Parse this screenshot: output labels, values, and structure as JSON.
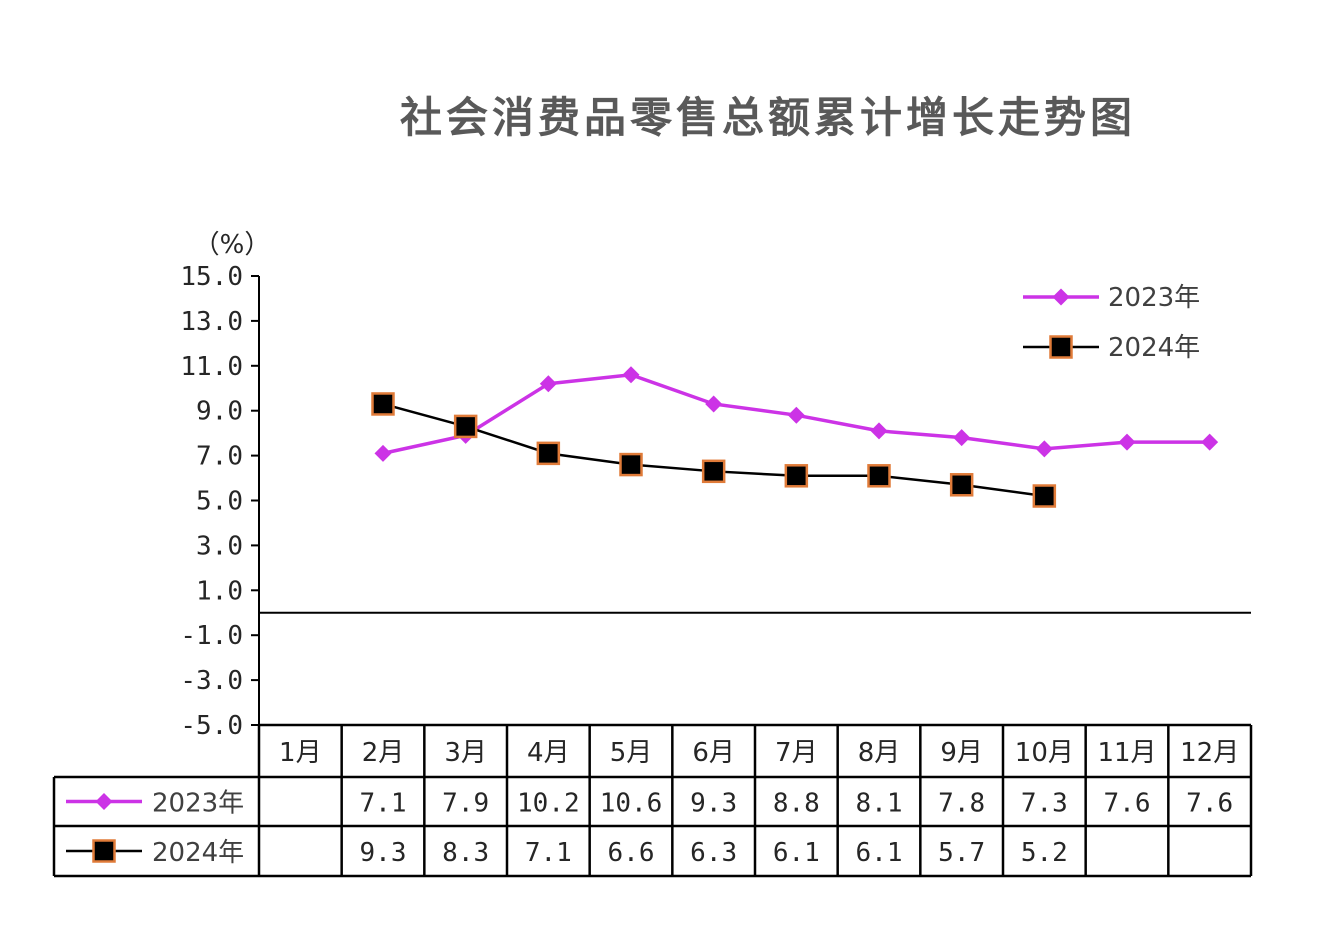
{
  "chart_data": {
    "type": "line",
    "title": "社会消费品零售总额累计增长走势图",
    "y_unit": "（%）",
    "ylim": [
      -5.0,
      15.0
    ],
    "y_ticks": [
      "15.0",
      "13.0",
      "11.0",
      "9.0",
      "7.0",
      "5.0",
      "3.0",
      "1.0",
      "-1.0",
      "-3.0",
      "-5.0"
    ],
    "categories": [
      "1月",
      "2月",
      "3月",
      "4月",
      "5月",
      "6月",
      "7月",
      "8月",
      "9月",
      "10月",
      "11月",
      "12月"
    ],
    "series": [
      {
        "name": "2023年",
        "color": "#cc33e6",
        "marker": "diamond",
        "values": [
          null,
          7.1,
          7.9,
          10.2,
          10.6,
          9.3,
          8.8,
          8.1,
          7.8,
          7.3,
          7.6,
          7.6
        ],
        "labels": [
          "",
          "7.1",
          "7.9",
          "10.2",
          "10.6",
          "9.3",
          "8.8",
          "8.1",
          "7.8",
          "7.3",
          "7.6",
          "7.6"
        ]
      },
      {
        "name": "2024年",
        "color": "#000000",
        "marker_border": "#e07b39",
        "marker": "square",
        "values": [
          null,
          9.3,
          8.3,
          7.1,
          6.6,
          6.3,
          6.1,
          6.1,
          5.7,
          5.2,
          null,
          null
        ],
        "labels": [
          "",
          "9.3",
          "8.3",
          "7.1",
          "6.6",
          "6.3",
          "6.1",
          "6.1",
          "5.7",
          "5.2",
          "",
          ""
        ]
      }
    ],
    "legend_position": "top-right",
    "grid": false,
    "data_table": true
  }
}
